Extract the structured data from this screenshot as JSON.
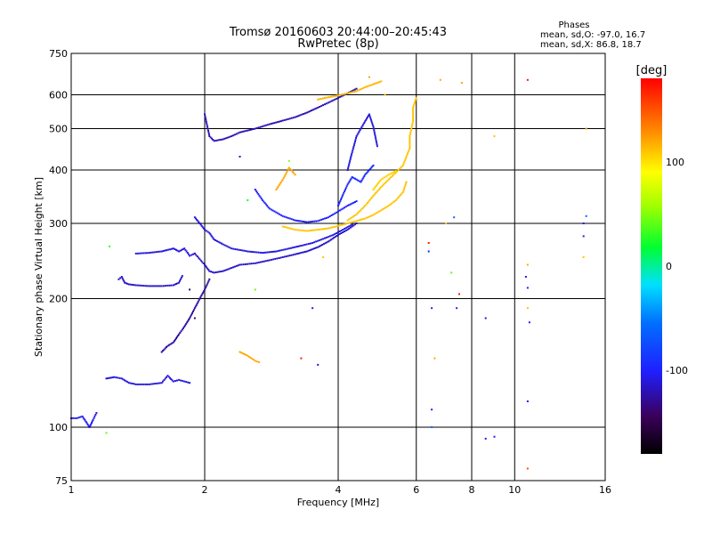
{
  "chart_data": {
    "type": "scatter",
    "title": "Tromsø 20160603 20:44:00–20:45:43",
    "subtitle": "RwPretec (8p)",
    "stats": {
      "heading": "Phases",
      "line_o": "mean, sd,O: -97.0, 16.7",
      "line_x": "mean, sd,X:  86.8, 18.7"
    },
    "xlabel": "Frequency [MHz]",
    "ylabel": "Stationary phase Virtual Height [km]",
    "x_scale": "log",
    "y_scale": "log",
    "xlim": [
      1,
      16
    ],
    "ylim": [
      75,
      750
    ],
    "x_ticks": [
      1,
      2,
      4,
      6,
      8,
      10,
      16
    ],
    "x_tick_labels": [
      "1",
      "2",
      "4",
      "6",
      "8",
      "10",
      "16"
    ],
    "y_ticks": [
      75,
      100,
      200,
      300,
      400,
      500,
      600,
      750
    ],
    "y_tick_labels": [
      "75",
      "100",
      "200",
      "300",
      "400",
      "500",
      "600",
      "750"
    ],
    "grid": true,
    "colorbar": {
      "label": "[deg]",
      "min": -180,
      "max": 180,
      "ticks": [
        100,
        0,
        -100
      ],
      "tick_labels": [
        "100",
        "0",
        "-100"
      ]
    },
    "traces": [
      {
        "phase": -105,
        "points": [
          [
            1.0,
            105
          ],
          [
            1.03,
            105
          ],
          [
            1.06,
            106
          ],
          [
            1.08,
            103
          ],
          [
            1.1,
            100
          ],
          [
            1.12,
            104
          ],
          [
            1.14,
            108
          ]
        ]
      },
      {
        "phase": -110,
        "points": [
          [
            1.2,
            130
          ],
          [
            1.25,
            131
          ],
          [
            1.3,
            130
          ],
          [
            1.35,
            127
          ],
          [
            1.4,
            126
          ],
          [
            1.5,
            126
          ],
          [
            1.6,
            127
          ],
          [
            1.65,
            132
          ],
          [
            1.7,
            128
          ],
          [
            1.75,
            129
          ],
          [
            1.8,
            128
          ],
          [
            1.85,
            127
          ]
        ]
      },
      {
        "phase": -115,
        "points": [
          [
            1.28,
            222
          ],
          [
            1.3,
            225
          ],
          [
            1.32,
            218
          ],
          [
            1.35,
            216
          ],
          [
            1.4,
            215
          ],
          [
            1.5,
            214
          ],
          [
            1.6,
            214
          ],
          [
            1.7,
            215
          ],
          [
            1.75,
            218
          ],
          [
            1.78,
            226
          ]
        ]
      },
      {
        "phase": -110,
        "points": [
          [
            1.4,
            255
          ],
          [
            1.5,
            256
          ],
          [
            1.6,
            258
          ],
          [
            1.7,
            262
          ],
          [
            1.75,
            258
          ],
          [
            1.8,
            262
          ],
          [
            1.85,
            252
          ],
          [
            1.9,
            255
          ]
        ]
      },
      {
        "phase": -125,
        "points": [
          [
            1.6,
            150
          ],
          [
            1.65,
            155
          ],
          [
            1.7,
            158
          ],
          [
            1.75,
            165
          ],
          [
            1.8,
            172
          ],
          [
            1.85,
            180
          ],
          [
            1.9,
            190
          ],
          [
            1.95,
            200
          ],
          [
            2.0,
            210
          ],
          [
            2.05,
            222
          ]
        ]
      },
      {
        "phase": -115,
        "points": [
          [
            1.9,
            255
          ],
          [
            2.0,
            240
          ],
          [
            2.05,
            232
          ],
          [
            2.1,
            230
          ],
          [
            2.2,
            232
          ],
          [
            2.3,
            236
          ],
          [
            2.4,
            240
          ],
          [
            2.6,
            242
          ],
          [
            2.8,
            246
          ],
          [
            3.0,
            250
          ],
          [
            3.2,
            254
          ],
          [
            3.4,
            258
          ],
          [
            3.6,
            264
          ],
          [
            3.8,
            272
          ],
          [
            4.0,
            282
          ],
          [
            4.2,
            290
          ],
          [
            4.4,
            300
          ]
        ]
      },
      {
        "phase": -110,
        "points": [
          [
            1.9,
            310
          ],
          [
            1.95,
            300
          ],
          [
            2.0,
            290
          ],
          [
            2.05,
            285
          ],
          [
            2.1,
            275
          ],
          [
            2.2,
            268
          ],
          [
            2.3,
            262
          ],
          [
            2.5,
            258
          ],
          [
            2.7,
            256
          ],
          [
            2.9,
            258
          ],
          [
            3.1,
            262
          ],
          [
            3.3,
            266
          ],
          [
            3.5,
            270
          ],
          [
            3.7,
            276
          ],
          [
            3.9,
            282
          ],
          [
            4.1,
            290
          ],
          [
            4.3,
            298
          ]
        ]
      },
      {
        "phase": -120,
        "points": [
          [
            2.0,
            540
          ],
          [
            2.05,
            480
          ],
          [
            2.1,
            468
          ],
          [
            2.2,
            472
          ],
          [
            2.3,
            480
          ],
          [
            2.4,
            490
          ],
          [
            2.6,
            500
          ],
          [
            2.8,
            512
          ],
          [
            3.0,
            522
          ],
          [
            3.2,
            532
          ],
          [
            3.4,
            545
          ],
          [
            3.6,
            560
          ],
          [
            3.8,
            575
          ],
          [
            4.0,
            590
          ],
          [
            4.2,
            605
          ],
          [
            4.4,
            620
          ]
        ]
      },
      {
        "phase": -100,
        "points": [
          [
            2.6,
            360
          ],
          [
            2.7,
            340
          ],
          [
            2.8,
            325
          ],
          [
            3.0,
            312
          ],
          [
            3.2,
            305
          ],
          [
            3.4,
            302
          ],
          [
            3.6,
            304
          ],
          [
            3.8,
            310
          ],
          [
            4.0,
            320
          ],
          [
            4.2,
            330
          ],
          [
            4.4,
            338
          ]
        ]
      },
      {
        "phase": -95,
        "points": [
          [
            4.0,
            330
          ],
          [
            4.1,
            350
          ],
          [
            4.2,
            370
          ],
          [
            4.3,
            385
          ],
          [
            4.4,
            380
          ],
          [
            4.5,
            375
          ],
          [
            4.6,
            390
          ],
          [
            4.7,
            400
          ],
          [
            4.8,
            410
          ]
        ]
      },
      {
        "phase": -110,
        "points": [
          [
            4.2,
            400
          ],
          [
            4.3,
            440
          ],
          [
            4.4,
            480
          ],
          [
            4.5,
            500
          ],
          [
            4.6,
            520
          ],
          [
            4.7,
            540
          ],
          [
            4.8,
            505
          ],
          [
            4.9,
            455
          ]
        ]
      },
      {
        "phase": 110,
        "points": [
          [
            3.0,
            295
          ],
          [
            3.2,
            290
          ],
          [
            3.4,
            288
          ],
          [
            3.6,
            290
          ],
          [
            3.8,
            292
          ],
          [
            4.0,
            296
          ],
          [
            4.2,
            300
          ],
          [
            4.4,
            304
          ],
          [
            4.6,
            308
          ],
          [
            4.8,
            314
          ],
          [
            5.0,
            322
          ],
          [
            5.2,
            330
          ],
          [
            5.4,
            340
          ],
          [
            5.6,
            355
          ],
          [
            5.7,
            375
          ]
        ]
      },
      {
        "phase": 110,
        "points": [
          [
            4.2,
            305
          ],
          [
            4.4,
            315
          ],
          [
            4.6,
            330
          ],
          [
            4.8,
            348
          ],
          [
            5.0,
            365
          ],
          [
            5.2,
            380
          ],
          [
            5.4,
            395
          ],
          [
            5.6,
            410
          ],
          [
            5.7,
            430
          ],
          [
            5.8,
            450
          ],
          [
            5.8,
            480
          ],
          [
            5.9,
            520
          ],
          [
            5.9,
            560
          ],
          [
            6.0,
            590
          ]
        ]
      },
      {
        "phase": 115,
        "points": [
          [
            3.6,
            585
          ],
          [
            3.8,
            592
          ],
          [
            4.0,
            598
          ],
          [
            4.2,
            605
          ],
          [
            4.4,
            612
          ],
          [
            4.6,
            625
          ],
          [
            4.8,
            635
          ],
          [
            5.0,
            645
          ]
        ]
      },
      {
        "phase": 120,
        "points": [
          [
            2.9,
            360
          ],
          [
            3.0,
            380
          ],
          [
            3.1,
            405
          ],
          [
            3.2,
            390
          ]
        ]
      },
      {
        "phase": 120,
        "points": [
          [
            2.4,
            150
          ],
          [
            2.5,
            147
          ],
          [
            2.6,
            143
          ],
          [
            2.65,
            142
          ]
        ]
      },
      {
        "phase": 105,
        "points": [
          [
            4.8,
            360
          ],
          [
            4.9,
            370
          ],
          [
            5.0,
            380
          ],
          [
            5.2,
            390
          ],
          [
            5.4,
            398
          ]
        ]
      }
    ],
    "scatter_points": [
      {
        "x": 1.2,
        "y": 97,
        "phase": 40
      },
      {
        "x": 1.22,
        "y": 265,
        "phase": 30
      },
      {
        "x": 2.5,
        "y": 340,
        "phase": 20
      },
      {
        "x": 3.1,
        "y": 420,
        "phase": 50
      },
      {
        "x": 3.6,
        "y": 140,
        "phase": -110
      },
      {
        "x": 3.7,
        "y": 250,
        "phase": 110
      },
      {
        "x": 3.5,
        "y": 190,
        "phase": -110
      },
      {
        "x": 6.5,
        "y": 190,
        "phase": -100
      },
      {
        "x": 6.6,
        "y": 145,
        "phase": 120
      },
      {
        "x": 7.0,
        "y": 300,
        "phase": 110
      },
      {
        "x": 7.3,
        "y": 310,
        "phase": -60
      },
      {
        "x": 7.2,
        "y": 230,
        "phase": 40
      },
      {
        "x": 7.5,
        "y": 205,
        "phase": 170
      },
      {
        "x": 7.4,
        "y": 190,
        "phase": -100
      },
      {
        "x": 6.8,
        "y": 650,
        "phase": 120
      },
      {
        "x": 7.6,
        "y": 640,
        "phase": 120
      },
      {
        "x": 6.4,
        "y": 270,
        "phase": 170
      },
      {
        "x": 6.4,
        "y": 258,
        "phase": -100
      },
      {
        "x": 6.5,
        "y": 110,
        "phase": -100
      },
      {
        "x": 6.5,
        "y": 100,
        "phase": -60
      },
      {
        "x": 8.6,
        "y": 180,
        "phase": -110
      },
      {
        "x": 8.6,
        "y": 94,
        "phase": -110
      },
      {
        "x": 9.0,
        "y": 95,
        "phase": -110
      },
      {
        "x": 9.0,
        "y": 480,
        "phase": 110
      },
      {
        "x": 10.7,
        "y": 650,
        "phase": 170
      },
      {
        "x": 10.7,
        "y": 80,
        "phase": 150
      },
      {
        "x": 10.7,
        "y": 115,
        "phase": -110
      },
      {
        "x": 10.7,
        "y": 190,
        "phase": 110
      },
      {
        "x": 10.7,
        "y": 240,
        "phase": 120
      },
      {
        "x": 10.8,
        "y": 176,
        "phase": -100
      },
      {
        "x": 10.7,
        "y": 212,
        "phase": -100
      },
      {
        "x": 10.6,
        "y": 225,
        "phase": -110
      },
      {
        "x": 14.5,
        "y": 500,
        "phase": 120
      },
      {
        "x": 14.5,
        "y": 312,
        "phase": -60
      },
      {
        "x": 14.3,
        "y": 300,
        "phase": -110
      },
      {
        "x": 14.3,
        "y": 250,
        "phase": 110
      },
      {
        "x": 14.3,
        "y": 280,
        "phase": -110
      },
      {
        "x": 3.3,
        "y": 145,
        "phase": 170
      },
      {
        "x": 2.4,
        "y": 430,
        "phase": -120
      },
      {
        "x": 2.6,
        "y": 210,
        "phase": 40
      },
      {
        "x": 5.1,
        "y": 600,
        "phase": 110
      },
      {
        "x": 4.7,
        "y": 660,
        "phase": 120
      },
      {
        "x": 1.85,
        "y": 210,
        "phase": -140
      },
      {
        "x": 1.9,
        "y": 180,
        "phase": -140
      }
    ]
  }
}
